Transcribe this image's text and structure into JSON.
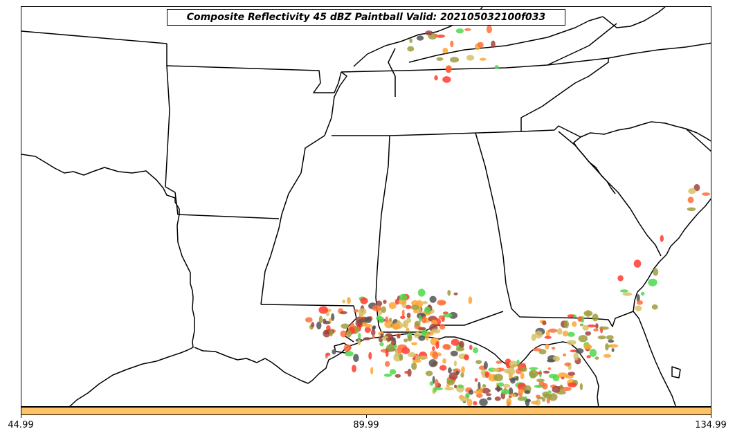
{
  "title": "Composite Reflectivity 45 dBZ Paintball Valid: 202105032100f033",
  "colorbar": {
    "color": "#ffc266",
    "ticks": [
      "44.99",
      "89.99",
      "134.99"
    ]
  },
  "member_colors": [
    "#ffa533",
    "#ff3b2f",
    "#4cd94c",
    "#a0443c",
    "#9c9c3c",
    "#555555",
    "#d6c266",
    "#ff6e3a"
  ],
  "land_boundary_color": "#000000"
}
